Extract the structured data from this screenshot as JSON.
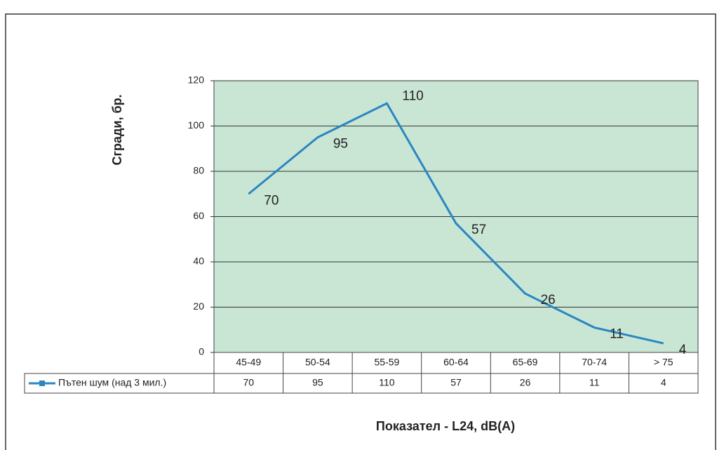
{
  "chart_data": {
    "type": "line",
    "categories": [
      "45-49",
      "50-54",
      "55-59",
      "60-64",
      "65-69",
      "70-74",
      "> 75"
    ],
    "series": [
      {
        "name": "Пътен шум (над 3 мил.)",
        "color": "#2b86c0",
        "values": [
          70,
          95,
          110,
          57,
          26,
          11,
          4
        ]
      }
    ],
    "ylim": [
      0,
      120
    ],
    "yticks": [
      0,
      20,
      40,
      60,
      80,
      100,
      120
    ],
    "grid": true,
    "y_label": "Сгради, бр.",
    "x_label": "Показател - L24, dB(A)",
    "plot_background": "#c9e6d5"
  }
}
